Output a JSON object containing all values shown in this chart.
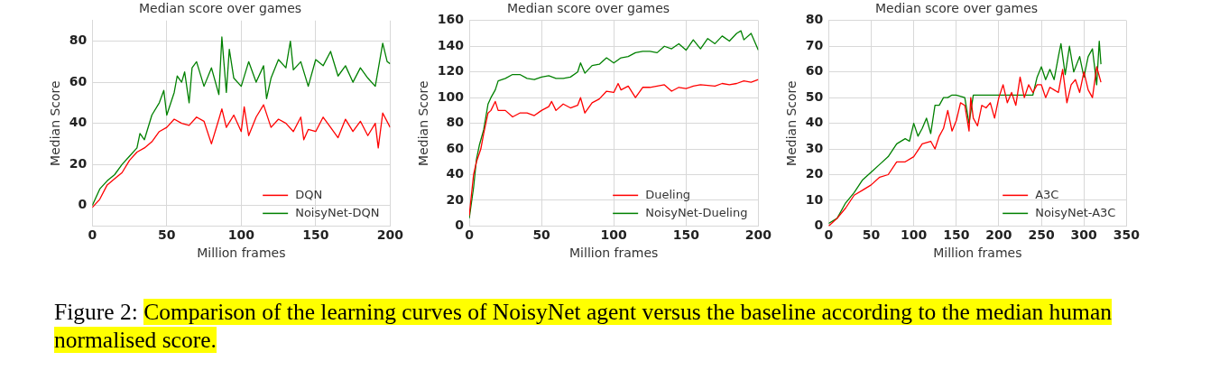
{
  "chart_data": [
    {
      "type": "line",
      "title": "Median score over games",
      "xlabel": "Million frames",
      "ylabel": "Median Score",
      "xlim": [
        0,
        200
      ],
      "xticks": [
        0,
        50,
        100,
        150,
        200
      ],
      "ylim": [
        -10,
        90
      ],
      "yticks": [
        0,
        20,
        40,
        60,
        80
      ],
      "grid": true,
      "legend": "bottom right",
      "marker": "none",
      "line_style": "solid",
      "annotations": [
        "Figure 2: Comparison of the learning curves of NoisyNet agent versus the baseline according to the median human normalised score."
      ],
      "series": [
        {
          "name": "DQN",
          "color": "#ff0000",
          "x": [
            0,
            5,
            10,
            15,
            20,
            25,
            30,
            35,
            40,
            45,
            50,
            55,
            60,
            65,
            70,
            75,
            80,
            85,
            87,
            90,
            95,
            100,
            102,
            105,
            110,
            115,
            120,
            125,
            130,
            135,
            140,
            142,
            145,
            150,
            155,
            160,
            165,
            170,
            175,
            180,
            185,
            190,
            192,
            195,
            200
          ],
          "values": [
            -1,
            3,
            10,
            13,
            16,
            22,
            26,
            28,
            31,
            36,
            38,
            42,
            40,
            39,
            43,
            41,
            30,
            42,
            47,
            38,
            44,
            36,
            48,
            34,
            43,
            49,
            38,
            42,
            40,
            36,
            43,
            32,
            37,
            36,
            43,
            38,
            33,
            42,
            36,
            41,
            34,
            40,
            28,
            45,
            38
          ]
        },
        {
          "name": "NoisyNet-DQN",
          "color": "#008000",
          "x": [
            0,
            5,
            10,
            15,
            20,
            25,
            30,
            32,
            35,
            40,
            45,
            48,
            50,
            55,
            57,
            60,
            62,
            65,
            67,
            70,
            75,
            80,
            85,
            87,
            90,
            92,
            95,
            100,
            105,
            110,
            115,
            117,
            120,
            125,
            130,
            133,
            135,
            140,
            145,
            150,
            155,
            160,
            165,
            170,
            175,
            180,
            185,
            190,
            195,
            198,
            200
          ],
          "values": [
            0,
            8,
            12,
            15,
            20,
            24,
            28,
            35,
            32,
            44,
            50,
            56,
            44,
            55,
            63,
            60,
            65,
            50,
            67,
            70,
            58,
            67,
            54,
            82,
            55,
            76,
            62,
            58,
            70,
            60,
            68,
            52,
            62,
            71,
            67,
            80,
            66,
            70,
            58,
            71,
            68,
            75,
            63,
            68,
            60,
            67,
            62,
            58,
            79,
            70,
            69
          ]
        }
      ]
    },
    {
      "type": "line",
      "title": "Median score over games",
      "xlabel": "Million frames",
      "ylabel": "Median Score",
      "xlim": [
        0,
        200
      ],
      "xticks": [
        0,
        50,
        100,
        150,
        200
      ],
      "ylim": [
        0,
        160
      ],
      "yticks": [
        0,
        20,
        40,
        60,
        80,
        100,
        120,
        140,
        160
      ],
      "grid": true,
      "legend": "bottom right",
      "marker": "none",
      "line_style": "solid",
      "series": [
        {
          "name": "Dueling",
          "color": "#ff0000",
          "x": [
            0,
            3,
            5,
            8,
            10,
            13,
            15,
            18,
            20,
            25,
            30,
            35,
            40,
            45,
            50,
            55,
            57,
            60,
            65,
            70,
            75,
            77,
            80,
            85,
            90,
            95,
            100,
            103,
            105,
            110,
            115,
            120,
            125,
            130,
            135,
            140,
            145,
            150,
            155,
            160,
            170,
            175,
            180,
            185,
            190,
            195,
            200
          ],
          "values": [
            8,
            40,
            50,
            60,
            72,
            88,
            90,
            97,
            90,
            90,
            85,
            88,
            88,
            86,
            90,
            93,
            97,
            90,
            95,
            92,
            94,
            100,
            88,
            96,
            99,
            105,
            104,
            111,
            106,
            109,
            100,
            108,
            108,
            109,
            110,
            105,
            108,
            107,
            109,
            110,
            109,
            111,
            110,
            111,
            113,
            112,
            114
          ]
        },
        {
          "name": "NoisyNet-Dueling",
          "color": "#008000",
          "x": [
            0,
            3,
            5,
            7,
            10,
            13,
            15,
            18,
            20,
            25,
            30,
            35,
            40,
            45,
            50,
            55,
            60,
            65,
            70,
            75,
            77,
            80,
            85,
            90,
            95,
            100,
            105,
            110,
            115,
            120,
            125,
            130,
            135,
            140,
            145,
            150,
            155,
            160,
            165,
            170,
            175,
            180,
            185,
            188,
            190,
            195,
            200
          ],
          "values": [
            6,
            30,
            52,
            63,
            75,
            95,
            100,
            106,
            113,
            115,
            118,
            118,
            115,
            114,
            116,
            117,
            115,
            115,
            116,
            120,
            127,
            119,
            125,
            126,
            131,
            127,
            131,
            132,
            135,
            136,
            136,
            135,
            140,
            138,
            142,
            137,
            145,
            138,
            146,
            142,
            148,
            144,
            150,
            152,
            145,
            150,
            137
          ]
        }
      ]
    },
    {
      "type": "line",
      "title": "Median score over games",
      "xlabel": "Million frames",
      "ylabel": "Median Score",
      "xlim": [
        0,
        350
      ],
      "xticks": [
        0,
        50,
        100,
        150,
        200,
        250,
        300,
        350
      ],
      "ylim": [
        0,
        80
      ],
      "yticks": [
        0,
        10,
        20,
        30,
        40,
        50,
        60,
        70,
        80
      ],
      "grid": true,
      "legend": "bottom right",
      "marker": "none",
      "line_style": "solid",
      "series": [
        {
          "name": "A3C",
          "color": "#ff0000",
          "x": [
            0,
            10,
            20,
            30,
            40,
            50,
            60,
            70,
            80,
            90,
            100,
            110,
            120,
            125,
            130,
            135,
            140,
            145,
            150,
            155,
            160,
            165,
            167,
            170,
            175,
            180,
            185,
            190,
            195,
            200,
            205,
            210,
            215,
            220,
            225,
            230,
            235,
            240,
            245,
            250,
            255,
            260,
            265,
            270,
            275,
            280,
            285,
            290,
            295,
            300,
            305,
            310,
            315,
            320
          ],
          "values": [
            0,
            3,
            7,
            12,
            14,
            16,
            19,
            20,
            25,
            25,
            27,
            32,
            33,
            30,
            35,
            38,
            45,
            37,
            41,
            48,
            47,
            37,
            50,
            42,
            39,
            47,
            46,
            48,
            42,
            50,
            55,
            48,
            52,
            47,
            58,
            50,
            55,
            52,
            55,
            55,
            50,
            54,
            53,
            52,
            61,
            48,
            55,
            57,
            52,
            60,
            53,
            50,
            62,
            56
          ]
        },
        {
          "name": "NoisyNet-A3C",
          "color": "#008000",
          "x": [
            0,
            10,
            20,
            30,
            40,
            50,
            60,
            70,
            80,
            90,
            95,
            100,
            105,
            110,
            115,
            120,
            125,
            130,
            135,
            140,
            145,
            150,
            160,
            165,
            170,
            180,
            190,
            200,
            210,
            220,
            230,
            240,
            245,
            250,
            255,
            260,
            265,
            270,
            273,
            278,
            283,
            288,
            295,
            300,
            305,
            310,
            315,
            318,
            320
          ],
          "values": [
            1,
            3,
            9,
            13,
            18,
            21,
            24,
            27,
            32,
            34,
            33,
            40,
            35,
            38,
            42,
            36,
            47,
            47,
            50,
            50,
            51,
            51,
            50,
            40,
            51,
            51,
            51,
            51,
            51,
            51,
            51,
            51,
            58,
            62,
            57,
            61,
            57,
            66,
            71,
            59,
            70,
            60,
            66,
            58,
            66,
            69,
            55,
            72,
            63
          ]
        }
      ]
    }
  ]
}
